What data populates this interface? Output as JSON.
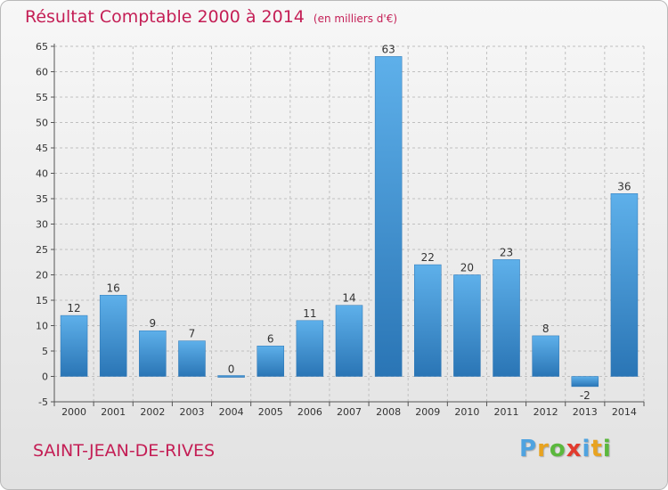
{
  "header": {
    "title": "Résultat Comptable 2000 à 2014",
    "subtitle": "(en milliers d'€)"
  },
  "commune": "SAINT-JEAN-DE-RIVES",
  "logo": {
    "letters": [
      "P",
      "r",
      "o",
      "x",
      "i",
      "t",
      "i"
    ],
    "colors": [
      "#4fa3e0",
      "#e8a320",
      "#5bb83d",
      "#e23b2e",
      "#4fa3e0",
      "#e8a320",
      "#5bb83d"
    ]
  },
  "colors": {
    "accent": "#c41e55",
    "bar_light": "#5eb0ea",
    "bar_dark": "#2a75b5",
    "grid": "#c0c0c0"
  },
  "chart_data": {
    "type": "bar",
    "title": "Résultat Comptable 2000 à 2014",
    "subtitle": "(en milliers d'€)",
    "xlabel": "",
    "ylabel": "",
    "categories": [
      "2000",
      "2001",
      "2002",
      "2003",
      "2004",
      "2005",
      "2006",
      "2007",
      "2008",
      "2009",
      "2010",
      "2011",
      "2012",
      "2013",
      "2014"
    ],
    "values": [
      12,
      16,
      9,
      7,
      0,
      6,
      11,
      14,
      63,
      22,
      20,
      23,
      8,
      -2,
      36
    ],
    "ylim": [
      -5,
      65
    ],
    "yticks": [
      -5,
      0,
      5,
      10,
      15,
      20,
      25,
      30,
      35,
      40,
      45,
      50,
      55,
      60,
      65
    ],
    "grid": true,
    "legend": "none"
  }
}
